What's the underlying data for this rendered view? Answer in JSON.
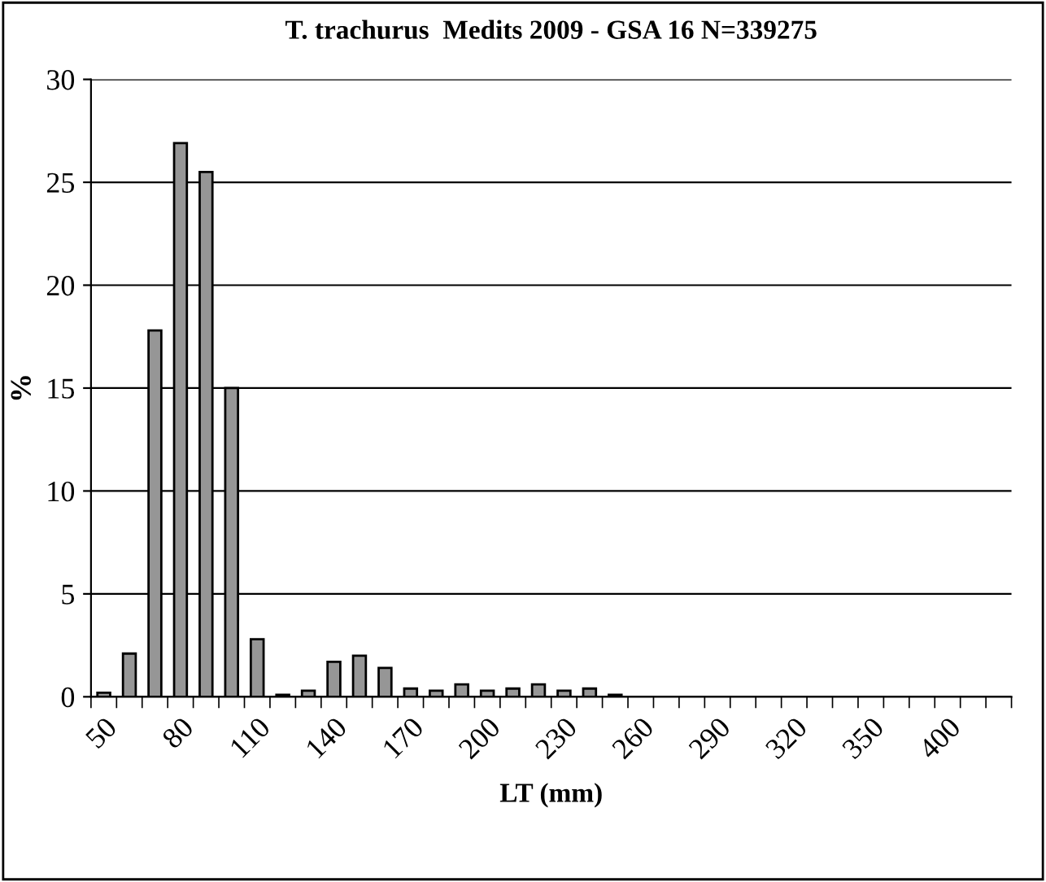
{
  "chart_data": {
    "type": "bar",
    "title": "T. trachurus  Medits 2009 - GSA 16 N=339275",
    "xlabel": "LT (mm)",
    "ylabel": "%",
    "categories": [
      "50",
      null,
      null,
      "80",
      null,
      null,
      "110",
      null,
      null,
      "140",
      null,
      null,
      "170",
      null,
      null,
      "200",
      null,
      null,
      "230",
      null,
      null,
      "260",
      null,
      null,
      "290",
      null,
      null,
      "320",
      null,
      null,
      "350",
      null,
      null,
      "400",
      null,
      null
    ],
    "values": [
      0.2,
      2.1,
      17.8,
      26.9,
      25.5,
      15.0,
      2.8,
      0.1,
      0.3,
      1.7,
      2.0,
      1.4,
      0.4,
      0.3,
      0.6,
      0.3,
      0.4,
      0.6,
      0.3,
      0.4,
      0.1,
      0,
      0,
      0,
      0,
      0,
      0,
      0,
      0,
      0,
      0,
      0,
      0,
      0,
      0,
      0
    ],
    "color": "#969696",
    "ylim": [
      0,
      30
    ],
    "yticks": [
      0,
      5,
      10,
      15,
      20,
      25,
      30
    ],
    "grid": "y",
    "legend": false
  }
}
